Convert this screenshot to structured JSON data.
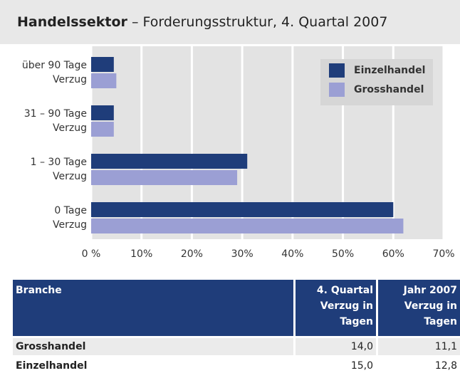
{
  "chart_data": {
    "type": "bar",
    "orientation": "horizontal",
    "title": "Handelssektor",
    "subtitle": "– Forderungsstruktur, 4. Quartal 2007",
    "categories": [
      "über 90 Tage\nVerzug",
      "31 – 90 Tage\nVerzug",
      "1 – 30 Tage\nVerzug",
      "0 Tage\nVerzug"
    ],
    "series": [
      {
        "name": "Einzelhandel",
        "color": "#1f3d7a",
        "values": [
          4.5,
          4.5,
          31,
          60
        ]
      },
      {
        "name": "Grosshandel",
        "color": "#9b9fd4",
        "values": [
          5,
          4.5,
          29,
          62
        ]
      }
    ],
    "xlim": [
      0,
      70
    ],
    "xticks": [
      {
        "value": 0,
        "label": "0 %"
      },
      {
        "value": 10,
        "label": "10%"
      },
      {
        "value": 20,
        "label": "20%"
      },
      {
        "value": 30,
        "label": "30%"
      },
      {
        "value": 40,
        "label": "40%"
      },
      {
        "value": 50,
        "label": "50%"
      },
      {
        "value": 60,
        "label": "60%"
      },
      {
        "value": 70,
        "label": "70%"
      }
    ],
    "grid": true,
    "legend": "top-right"
  },
  "table": {
    "header": [
      "Branche",
      "4. Quartal\nVerzug in\nTagen",
      "Jahr 2007\nVerzug in\nTagen"
    ],
    "rows": [
      [
        "Grosshandel",
        "14,0",
        "11,1"
      ],
      [
        "Einzelhandel",
        "15,0",
        "12,8"
      ]
    ]
  }
}
